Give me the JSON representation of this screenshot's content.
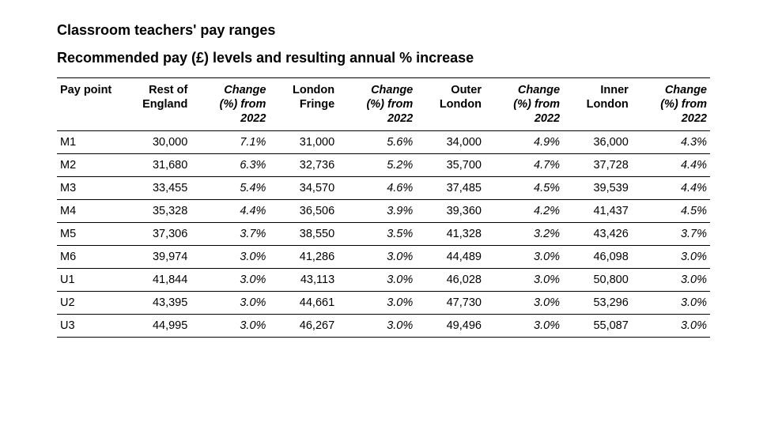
{
  "title1": "Classroom teachers' pay ranges",
  "title2": "Recommended pay (£) levels and resulting annual % increase",
  "columns": {
    "point": "Pay point",
    "regions": [
      {
        "name_l1": "Rest of",
        "name_l2": "England"
      },
      {
        "name_l1": "London",
        "name_l2": "Fringe"
      },
      {
        "name_l1": "Outer",
        "name_l2": "London"
      },
      {
        "name_l1": "Inner",
        "name_l2": "London"
      }
    ],
    "change_l1": "Change",
    "change_l2": "(%) from",
    "change_l3": "2022"
  },
  "rows": [
    {
      "point": "M1",
      "vals": [
        "30,000",
        "31,000",
        "34,000",
        "36,000"
      ],
      "chgs": [
        "7.1%",
        "5.6%",
        "4.9%",
        "4.3%"
      ]
    },
    {
      "point": "M2",
      "vals": [
        "31,680",
        "32,736",
        "35,700",
        "37,728"
      ],
      "chgs": [
        "6.3%",
        "5.2%",
        "4.7%",
        "4.4%"
      ]
    },
    {
      "point": "M3",
      "vals": [
        "33,455",
        "34,570",
        "37,485",
        "39,539"
      ],
      "chgs": [
        "5.4%",
        "4.6%",
        "4.5%",
        "4.4%"
      ]
    },
    {
      "point": "M4",
      "vals": [
        "35,328",
        "36,506",
        "39,360",
        "41,437"
      ],
      "chgs": [
        "4.4%",
        "3.9%",
        "4.2%",
        "4.5%"
      ]
    },
    {
      "point": "M5",
      "vals": [
        "37,306",
        "38,550",
        "41,328",
        "43,426"
      ],
      "chgs": [
        "3.7%",
        "3.5%",
        "3.2%",
        "3.7%"
      ]
    },
    {
      "point": "M6",
      "vals": [
        "39,974",
        "41,286",
        "44,489",
        "46,098"
      ],
      "chgs": [
        "3.0%",
        "3.0%",
        "3.0%",
        "3.0%"
      ]
    },
    {
      "point": "U1",
      "vals": [
        "41,844",
        "43,113",
        "46,028",
        "50,800"
      ],
      "chgs": [
        "3.0%",
        "3.0%",
        "3.0%",
        "3.0%"
      ]
    },
    {
      "point": "U2",
      "vals": [
        "43,395",
        "44,661",
        "47,730",
        "53,296"
      ],
      "chgs": [
        "3.0%",
        "3.0%",
        "3.0%",
        "3.0%"
      ]
    },
    {
      "point": "U3",
      "vals": [
        "44,995",
        "46,267",
        "49,496",
        "55,087"
      ],
      "chgs": [
        "3.0%",
        "3.0%",
        "3.0%",
        "3.0%"
      ]
    }
  ]
}
